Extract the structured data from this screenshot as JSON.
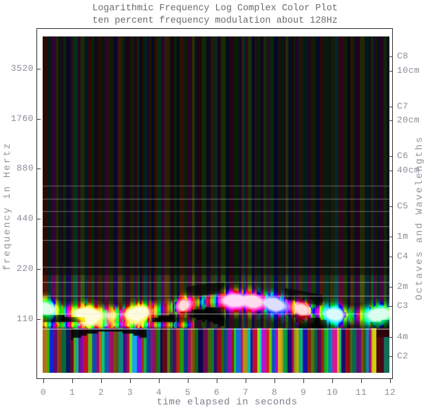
{
  "title": "Logarithmic Frequency Log Complex Color Plot",
  "subtitle": "ten percent frequency modulation about 128Hz",
  "chart_data": {
    "type": "heatmap",
    "title": "Logarithmic Frequency Log Complex Color Plot",
    "subtitle": "ten percent frequency modulation about 128Hz",
    "xlabel": "time elapsed in seconds",
    "ylabel": "frequency in Hertz",
    "ylabel_right": "Octaves and Wavelengths",
    "x_range": [
      0,
      12
    ],
    "x_ticks": [
      0,
      1,
      2,
      3,
      4,
      5,
      6,
      7,
      8,
      9,
      10,
      11,
      12
    ],
    "y_scale": "log-frequency",
    "freq_range_hz": [
      52,
      5510
    ],
    "y_ticks_hz": [
      3520,
      1760,
      880,
      440,
      220,
      110
    ],
    "right_axis_ticks": [
      {
        "label": "C8",
        "hz": 4186.01
      },
      {
        "label": "10cm",
        "hz": 3432.0
      },
      {
        "label": "C7",
        "hz": 2093.0
      },
      {
        "label": "20cm",
        "hz": 1716.0
      },
      {
        "label": "C6",
        "hz": 1046.5
      },
      {
        "label": "40cm",
        "hz": 858.0
      },
      {
        "label": "C5",
        "hz": 523.25
      },
      {
        "label": "1m",
        "hz": 343.2
      },
      {
        "label": "C4",
        "hz": 261.63
      },
      {
        "label": "2m",
        "hz": 171.6
      },
      {
        "label": "C3",
        "hz": 130.81
      },
      {
        "label": "4m",
        "hz": 85.8
      },
      {
        "label": "C2",
        "hz": 65.41
      }
    ],
    "signal": {
      "carrier_hz": 128,
      "modulation_percent": 10,
      "modulation_period_s": 8.7,
      "duration_s": 12,
      "freq_low_hz": 115.2,
      "freq_high_hz": 140.8
    },
    "gridlines_hz": [
      699,
      583,
      491,
      398,
      327,
      226,
      184,
      152,
      118,
      96
    ],
    "band_highlights": [
      {
        "t": 0.1,
        "hue": 140,
        "amp": 1.0,
        "sigma": 0.22
      },
      {
        "t": 1.55,
        "hue": 55,
        "amp": 1.25,
        "sigma": 0.33
      },
      {
        "t": 2.3,
        "hue": 60,
        "amp": 0.5,
        "sigma": 0.18
      },
      {
        "t": 3.25,
        "hue": 55,
        "amp": 1.2,
        "sigma": 0.3
      },
      {
        "t": 4.85,
        "hue": 0,
        "amp": 0.85,
        "sigma": 0.18
      },
      {
        "t": 6.6,
        "hue": 310,
        "amp": 1.1,
        "sigma": 0.3
      },
      {
        "t": 7.25,
        "hue": 325,
        "amp": 1.0,
        "sigma": 0.25
      },
      {
        "t": 8.0,
        "hue": 235,
        "amp": 1.1,
        "sigma": 0.28
      },
      {
        "t": 8.95,
        "hue": 355,
        "amp": 0.95,
        "sigma": 0.2
      },
      {
        "t": 10.05,
        "hue": 185,
        "amp": 1.0,
        "sigma": 0.25
      },
      {
        "t": 11.6,
        "hue": 150,
        "amp": 1.15,
        "sigma": 0.3
      }
    ]
  },
  "colors": {
    "title_text": "#6b6b6b",
    "tick_text": "#8d8d99",
    "axis_label_text": "#93939e",
    "frame": "#2e2e2e",
    "gridline": "#e8e8f0",
    "plot_background": "#050505"
  }
}
